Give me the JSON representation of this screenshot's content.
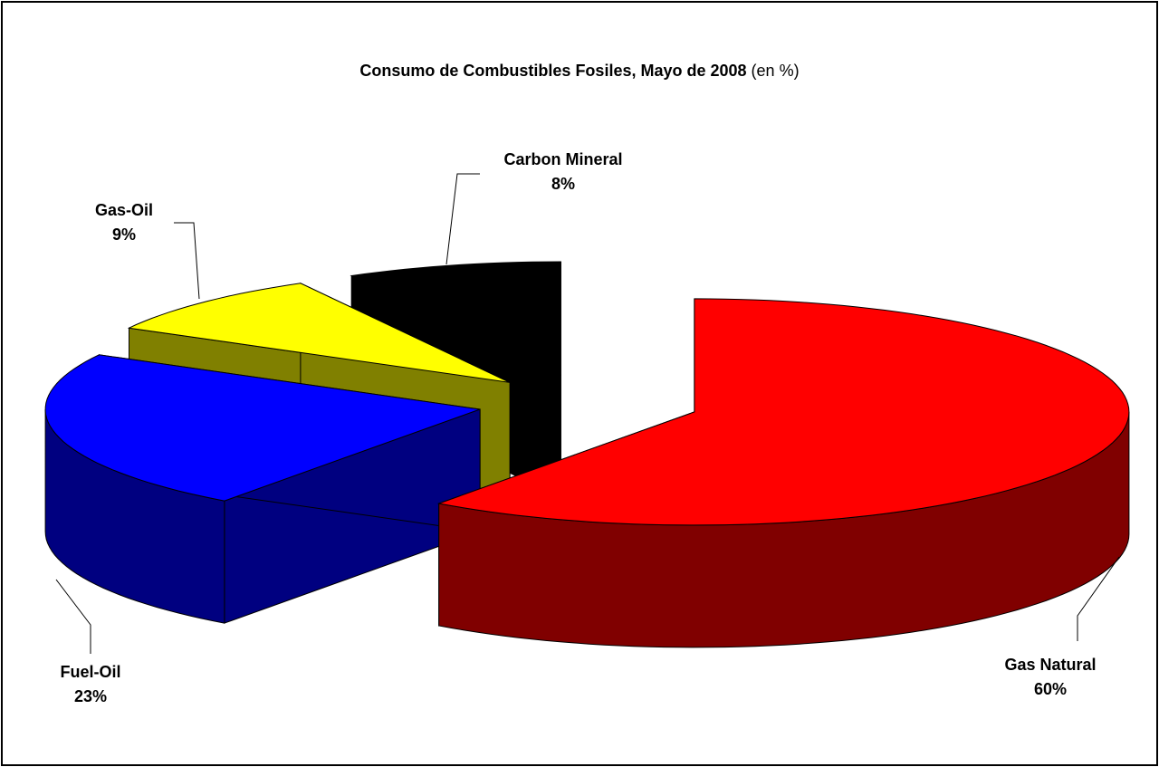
{
  "chart_data": {
    "type": "pie3d",
    "title": "Consumo de Combustibles Fosiles, Mayo de 2008",
    "subtitle": "(en %)",
    "categories": [
      "Gas Natural",
      "Fuel-Oil",
      "Gas-Oil",
      "Carbon Mineral"
    ],
    "values": [
      60,
      23,
      9,
      8
    ],
    "value_labels": [
      "60%",
      "23%",
      "9%",
      "8%"
    ],
    "colors": [
      "#ff0000",
      "#0000ff",
      "#ffff00",
      "#000000"
    ],
    "side_colors": [
      "#800000",
      "#000080",
      "#808000",
      "#000000"
    ]
  }
}
